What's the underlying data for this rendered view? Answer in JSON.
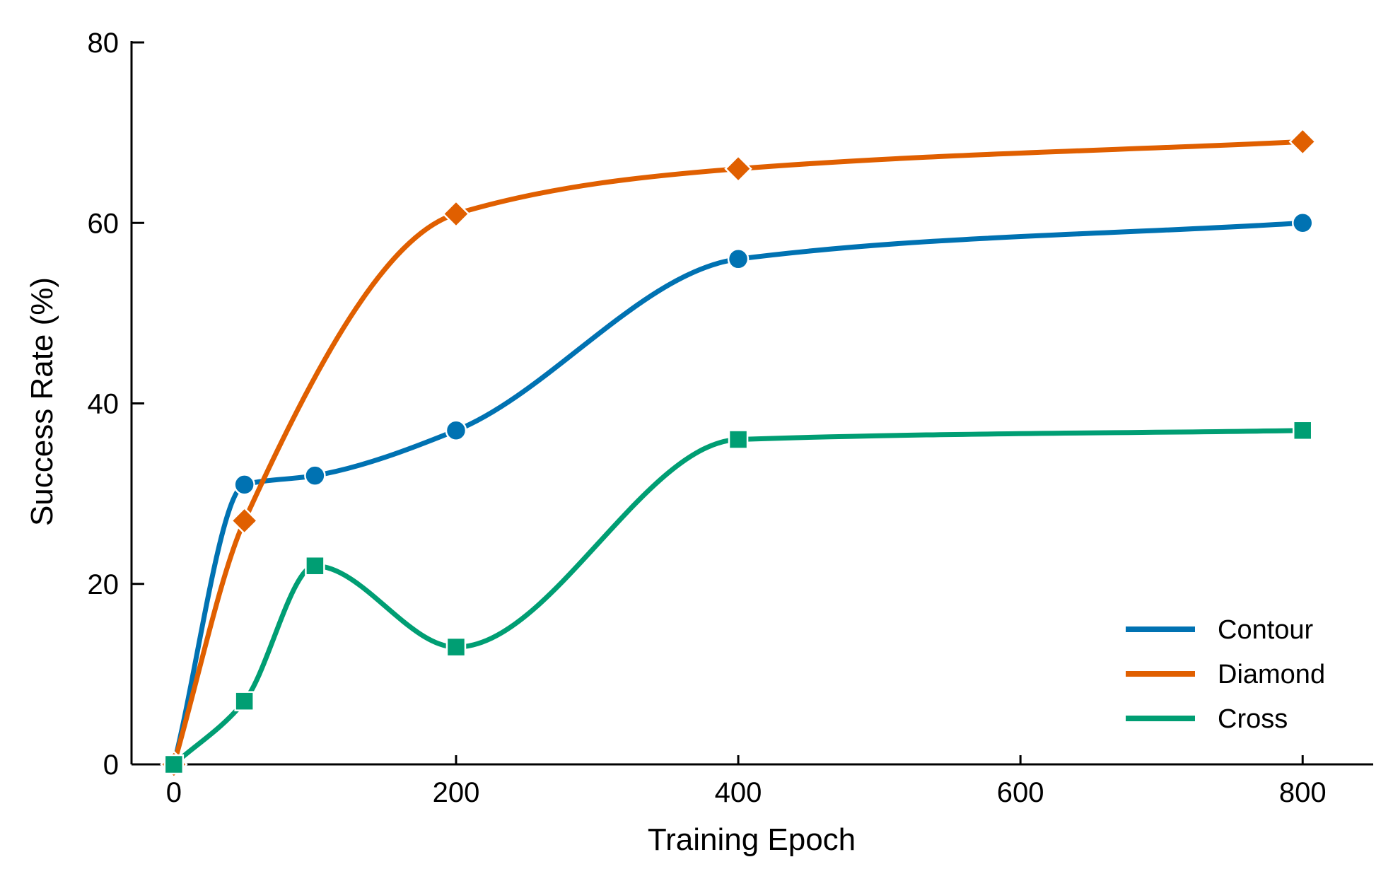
{
  "chart_data": {
    "type": "line",
    "title": "",
    "xlabel": "Training Epoch",
    "ylabel": "Success Rate (%)",
    "xlim": [
      -30,
      850
    ],
    "ylim": [
      0,
      80
    ],
    "xticks": [
      0,
      200,
      400,
      600,
      800
    ],
    "yticks": [
      0,
      20,
      40,
      60,
      80
    ],
    "xtick_labels": [
      "0",
      "200",
      "400",
      "600",
      "800"
    ],
    "ytick_labels": [
      "0",
      "20",
      "40",
      "60",
      "80"
    ],
    "grid": false,
    "legend_position": "lower-right",
    "x": [
      0,
      50,
      100,
      200,
      400,
      800
    ],
    "series": [
      {
        "name": "Contour",
        "color": "#0072B2",
        "marker": "circle",
        "x": [
          0,
          50,
          100,
          200,
          400,
          800
        ],
        "values": [
          0,
          31,
          32,
          37,
          56,
          60
        ]
      },
      {
        "name": "Diamond",
        "color": "#E05F00",
        "marker": "diamond",
        "x": [
          0,
          50,
          200,
          400,
          800
        ],
        "values": [
          0,
          27,
          61,
          66,
          69
        ]
      },
      {
        "name": "Cross",
        "color": "#009E73",
        "marker": "square",
        "x": [
          0,
          50,
          100,
          200,
          400,
          800
        ],
        "values": [
          0,
          7,
          22,
          13,
          36,
          37
        ]
      }
    ]
  }
}
